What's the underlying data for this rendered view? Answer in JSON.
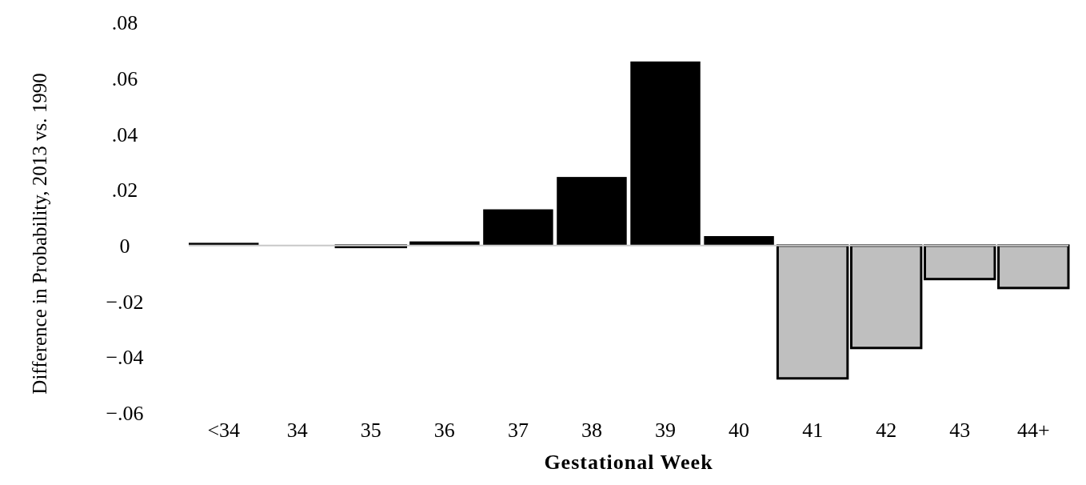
{
  "chart_data": {
    "type": "bar",
    "xlabel": "Gestational Week",
    "ylabel": "Difference in Probability, 2013 vs. 1990",
    "categories": [
      "<34",
      "34",
      "35",
      "36",
      "37",
      "38",
      "39",
      "40",
      "41",
      "42",
      "43",
      "44+"
    ],
    "values": [
      0.001,
      0,
      -0.0005,
      0.0015,
      0.013,
      0.0246,
      0.066,
      0.0034,
      -0.0476,
      -0.0367,
      -0.012,
      -0.0152
    ],
    "colors": [
      "#000000",
      "#000000",
      "#000000",
      "#000000",
      "#000000",
      "#000000",
      "#000000",
      "#000000",
      "#bfbfbf",
      "#bfbfbf",
      "#bfbfbf",
      "#bfbfbf"
    ],
    "ylim": [
      -0.06,
      0.08
    ],
    "yticks": [
      {
        "value": 0.08,
        "label": ".08"
      },
      {
        "value": 0.06,
        "label": ".06"
      },
      {
        "value": 0.04,
        "label": ".04"
      },
      {
        "value": 0.02,
        "label": ".02"
      },
      0,
      {
        "value": -0.02,
        "label": "−.02"
      },
      {
        "value": -0.04,
        "label": "−.04"
      },
      {
        "value": -0.06,
        "label": "−.06"
      }
    ],
    "ref_lines": [
      {
        "axis": "y",
        "value": 0,
        "color": "#c8c8c8"
      }
    ],
    "grid": false
  }
}
